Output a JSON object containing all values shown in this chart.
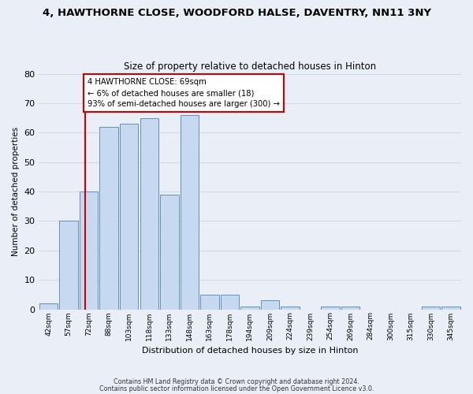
{
  "title": "4, HAWTHORNE CLOSE, WOODFORD HALSE, DAVENTRY, NN11 3NY",
  "subtitle": "Size of property relative to detached houses in Hinton",
  "xlabel": "Distribution of detached houses by size in Hinton",
  "ylabel": "Number of detached properties",
  "bin_labels": [
    "42sqm",
    "57sqm",
    "72sqm",
    "88sqm",
    "103sqm",
    "118sqm",
    "133sqm",
    "148sqm",
    "163sqm",
    "178sqm",
    "194sqm",
    "209sqm",
    "224sqm",
    "239sqm",
    "254sqm",
    "269sqm",
    "284sqm",
    "300sqm",
    "315sqm",
    "330sqm",
    "345sqm"
  ],
  "bar_heights": [
    2,
    30,
    40,
    62,
    63,
    65,
    39,
    66,
    5,
    5,
    1,
    3,
    1,
    0,
    1,
    1,
    0,
    0,
    0,
    1,
    1
  ],
  "bar_color": "#c6d9f0",
  "bar_edge_color": "#6090c0",
  "vline_color": "#cc0000",
  "annotation_line1": "4 HAWTHORNE CLOSE: 69sqm",
  "annotation_line2": "← 6% of detached houses are smaller (18)",
  "annotation_line3": "93% of semi-detached houses are larger (300) →",
  "annotation_box_color": "#ffffff",
  "annotation_box_edge": "#cc0000",
  "ylim": [
    0,
    80
  ],
  "yticks": [
    0,
    10,
    20,
    30,
    40,
    50,
    60,
    70,
    80
  ],
  "grid_color": "#d0d8e8",
  "bg_color": "#eaeff7",
  "footer1": "Contains HM Land Registry data © Crown copyright and database right 2024.",
  "footer2": "Contains public sector information licensed under the Open Government Licence v3.0."
}
